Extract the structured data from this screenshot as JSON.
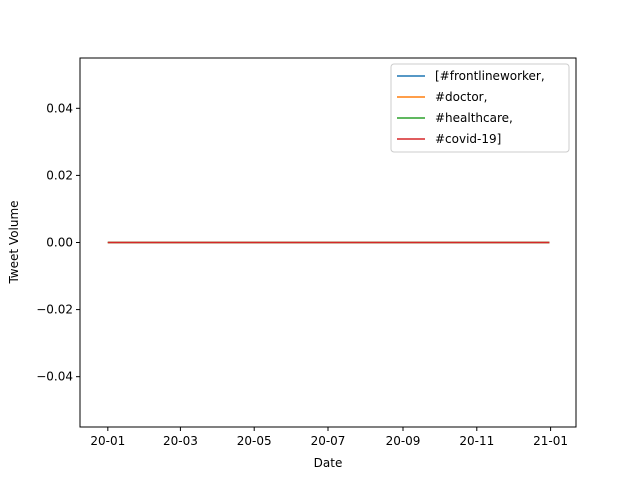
{
  "chart_data": {
    "type": "line",
    "xlabel": "Date",
    "ylabel": "Tweet Volume",
    "xlim": [
      "2019-12-09",
      "2021-01-22"
    ],
    "ylim": [
      -0.055,
      0.055
    ],
    "x_ticks": [
      {
        "value": "2020-01-01",
        "label": "20-01"
      },
      {
        "value": "2020-03-01",
        "label": "20-03"
      },
      {
        "value": "2020-05-01",
        "label": "20-05"
      },
      {
        "value": "2020-07-01",
        "label": "20-07"
      },
      {
        "value": "2020-09-01",
        "label": "20-09"
      },
      {
        "value": "2020-11-01",
        "label": "20-11"
      },
      {
        "value": "2021-01-01",
        "label": "21-01"
      }
    ],
    "y_ticks": [
      {
        "value": 0.04,
        "label": "0.04"
      },
      {
        "value": 0.02,
        "label": "0.02"
      },
      {
        "value": 0.0,
        "label": "0.00"
      },
      {
        "value": -0.02,
        "label": "−0.02"
      },
      {
        "value": -0.04,
        "label": "−0.04"
      }
    ],
    "grid": false,
    "legend_position": "top-right",
    "series": [
      {
        "name": "[#frontlineworker,",
        "color": "#1f77b4",
        "x": [
          "2020-01-01",
          "2020-12-31"
        ],
        "y": [
          0,
          0
        ]
      },
      {
        "name": "#doctor,",
        "color": "#ff7f0e",
        "x": [
          "2020-01-01",
          "2020-12-31"
        ],
        "y": [
          0,
          0
        ]
      },
      {
        "name": "#healthcare,",
        "color": "#2ca02c",
        "x": [
          "2020-01-01",
          "2020-12-31"
        ],
        "y": [
          0,
          0
        ]
      },
      {
        "name": "#covid-19]",
        "color": "#d62728",
        "x": [
          "2020-01-01",
          "2020-12-31"
        ],
        "y": [
          0,
          0
        ]
      }
    ]
  }
}
